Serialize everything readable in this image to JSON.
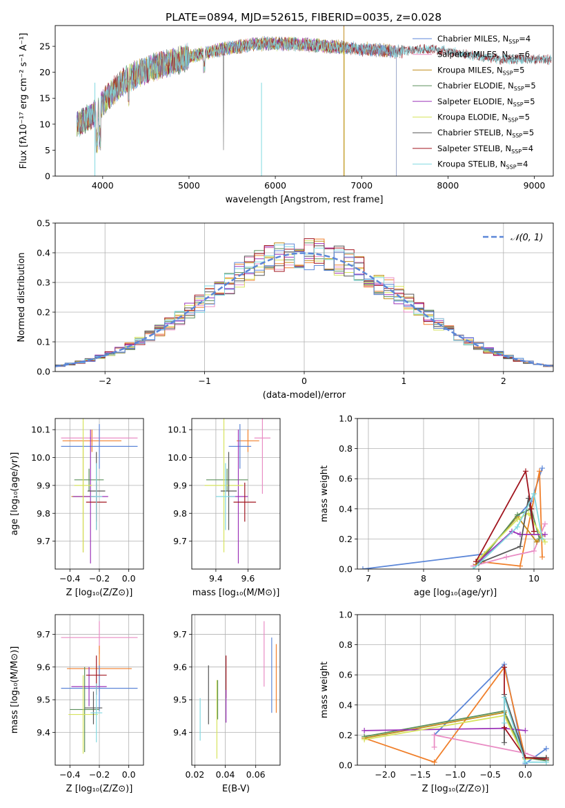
{
  "figure_title": "PLATE=0894, MJD=52615, FIBERID=0035, z=0.028",
  "colors": {
    "chabrier_miles": "#f07f2a",
    "salpeter_miles": "#e98cc4",
    "kroupa_miles": "#c08b1a",
    "chabrier_elodie": "#5a8f5a",
    "salpeter_elodie": "#9b32b8",
    "kroupa_elodie": "#d6e35c",
    "chabrier_stelib": "#555555",
    "salpeter_stelib": "#a0141e",
    "kroupa_stelib": "#80d8e0",
    "extra_blue": "#5b86d8"
  },
  "chart_data": [
    {
      "id": "spectrum",
      "type": "line",
      "xlabel": "wavelength [Angstrom, rest frame]",
      "ylabel": "Flux [fλ10⁻¹⁷ erg cm⁻² s⁻¹ A⁻¹]",
      "xlim": [
        3450,
        9220
      ],
      "ylim": [
        0,
        29
      ],
      "xticks": [
        4000,
        5000,
        6000,
        7000,
        8000,
        9000
      ],
      "yticks": [
        0,
        5,
        10,
        15,
        20,
        25
      ],
      "legend_position": "upper right",
      "continuum": {
        "x": [
          3700,
          3900,
          4100,
          4300,
          4600,
          5000,
          5400,
          5800,
          6200,
          6600,
          7000,
          7400,
          7800,
          8200,
          8600,
          9000,
          9200
        ],
        "y": [
          10,
          12,
          16,
          19,
          21,
          23,
          24.5,
          25.5,
          25.5,
          25,
          24.5,
          24,
          24.5,
          23.5,
          22.5,
          22.5,
          22.5
        ]
      },
      "series": [
        {
          "name": "Chabrier MILES, N_SSP=4",
          "x_start": 3700,
          "x_end": 7400
        },
        {
          "name": "Salpeter MILES, N_SSP=6",
          "x_start": 3700,
          "x_end": 7400
        },
        {
          "name": "Kroupa MILES, N_SSP=5",
          "x_start": 3700,
          "x_end": 7400
        },
        {
          "name": "Chabrier ELODIE, N_SSP=5",
          "x_start": 3700,
          "x_end": 6800
        },
        {
          "name": "Salpeter ELODIE, N_SSP=5",
          "x_start": 3700,
          "x_end": 6800
        },
        {
          "name": "Kroupa ELODIE, N_SSP=5",
          "x_start": 3700,
          "x_end": 6800
        },
        {
          "name": "Chabrier STELIB, N_SSP=5",
          "x_start": 3700,
          "x_end": 9200
        },
        {
          "name": "Salpeter STELIB, N_SSP=4",
          "x_start": 3700,
          "x_end": 9200
        },
        {
          "name": "Kroupa STELIB, N_SSP=4",
          "x_start": 3700,
          "x_end": 9200
        }
      ],
      "legend": [
        "Chabrier MILES, N",
        "Salpeter MILES, N",
        "Kroupa MILES, N",
        "Chabrier ELODIE, N",
        "Salpeter ELODIE, N",
        "Kroupa ELODIE, N",
        "Chabrier STELIB, N",
        "Salpeter STELIB, N",
        "Kroupa STELIB, N"
      ],
      "legend_sub": "SSP",
      "legend_counts": [
        "=4",
        "=6",
        "=5",
        "=5",
        "=5",
        "=5",
        "=5",
        "=4",
        "=4"
      ],
      "legend_colors": [
        "#5b86d8",
        "#e98cc4",
        "#c08b1a",
        "#5a8f5a",
        "#9b32b8",
        "#d6e35c",
        "#555555",
        "#a0141e",
        "#80d8e0"
      ]
    },
    {
      "id": "residuals",
      "type": "histogram",
      "xlabel": "(data-model)/error",
      "ylabel": "Normed distribution",
      "xlim": [
        -2.5,
        2.5
      ],
      "ylim": [
        0,
        0.5
      ],
      "xticks": [
        -2,
        -1,
        0,
        1,
        2
      ],
      "xticklabels": [
        "−2",
        "−1",
        "0",
        "1",
        "2"
      ],
      "yticks": [
        0.0,
        0.1,
        0.2,
        0.3,
        0.4,
        0.5
      ],
      "yticklabels": [
        "0.0",
        "0.1",
        "0.2",
        "0.3",
        "0.4",
        "0.5"
      ],
      "bin_width": 0.1,
      "gaussian_label": "𝒩(0, 1)",
      "gaussian_color": "#5b86d8",
      "legend_position": "upper right",
      "n_histograms": 9
    },
    {
      "id": "age_vs_Z",
      "type": "errorbar",
      "xlabel": "Z [log₁₀(Z/Z⊙)]",
      "ylabel": "age  [log₁₀(age/yr)]",
      "xlim": [
        -0.5,
        0.1
      ],
      "ylim": [
        9.6,
        10.14
      ],
      "xticks": [
        -0.4,
        -0.2,
        0.0
      ],
      "xticklabels": [
        "−0.4",
        "−0.2",
        "0.0"
      ],
      "yticks": [
        9.7,
        9.8,
        9.9,
        10.0,
        10.1
      ],
      "yticklabels": [
        "9.7",
        "9.8",
        "9.9",
        "10.0",
        "10.1"
      ],
      "points": [
        {
          "x": -0.25,
          "y": 10.06,
          "xerr": 0.2,
          "yerr": 0.04,
          "color": "#f07f2a"
        },
        {
          "x": -0.2,
          "y": 10.07,
          "xerr": 0.26,
          "yerr": 0.03,
          "color": "#e98cc4"
        },
        {
          "x": -0.2,
          "y": 10.04,
          "xerr": 0.26,
          "yerr": 0.08,
          "color": "#5b86d8"
        },
        {
          "x": -0.31,
          "y": 9.86,
          "xerr": 0.08,
          "yerr": 0.2,
          "color": "#c08b1a"
        },
        {
          "x": -0.27,
          "y": 9.92,
          "xerr": 0.1,
          "yerr": 0.04,
          "color": "#5a8f5a"
        },
        {
          "x": -0.26,
          "y": 9.86,
          "xerr": 0.12,
          "yerr": 0.24,
          "color": "#9b32b8"
        },
        {
          "x": -0.31,
          "y": 9.9,
          "xerr": 0.06,
          "yerr": 0.24,
          "color": "#d6e35c"
        },
        {
          "x": -0.22,
          "y": 9.88,
          "xerr": 0.06,
          "yerr": 0.14,
          "color": "#555555"
        },
        {
          "x": -0.22,
          "y": 9.84,
          "xerr": 0.07,
          "yerr": 0.07,
          "color": "#a0141e"
        },
        {
          "x": -0.22,
          "y": 9.86,
          "xerr": 0.04,
          "yerr": 0.12,
          "color": "#80d8e0"
        }
      ]
    },
    {
      "id": "age_vs_mass",
      "type": "errorbar",
      "xlabel": "mass [log₁₀(M/M⊙)]",
      "xlim": [
        9.25,
        9.8
      ],
      "ylim": [
        9.6,
        10.14
      ],
      "xticks": [
        9.4,
        9.6
      ],
      "xticklabels": [
        "9.4",
        "9.6"
      ],
      "yticks": [
        9.7,
        9.8,
        9.9,
        10.0,
        10.1
      ],
      "yticklabels": [
        "9.7",
        "9.8",
        "9.9",
        "10.0",
        "10.1"
      ],
      "points": [
        {
          "x": 9.6,
          "y": 10.06,
          "xerr": 0.07,
          "yerr": 0.04,
          "color": "#f07f2a"
        },
        {
          "x": 9.69,
          "y": 10.07,
          "xerr": 0.05,
          "yerr": 0.2,
          "color": "#e98cc4"
        },
        {
          "x": 9.55,
          "y": 10.04,
          "xerr": 0.07,
          "yerr": 0.08,
          "color": "#5b86d8"
        },
        {
          "x": 9.47,
          "y": 9.92,
          "xerr": 0.13,
          "yerr": 0.04,
          "color": "#5a8f5a"
        },
        {
          "x": 9.54,
          "y": 9.86,
          "xerr": 0.06,
          "yerr": 0.24,
          "color": "#9b32b8"
        },
        {
          "x": 9.45,
          "y": 9.9,
          "xerr": 0.12,
          "yerr": 0.24,
          "color": "#d6e35c"
        },
        {
          "x": 9.48,
          "y": 9.88,
          "xerr": 0.05,
          "yerr": 0.14,
          "color": "#555555"
        },
        {
          "x": 9.58,
          "y": 9.84,
          "xerr": 0.07,
          "yerr": 0.07,
          "color": "#a0141e"
        },
        {
          "x": 9.46,
          "y": 9.86,
          "xerr": 0.06,
          "yerr": 0.12,
          "color": "#80d8e0"
        }
      ]
    },
    {
      "id": "massweight_vs_age",
      "type": "line",
      "xlabel": "age  [log₁₀(age/yr)]",
      "ylabel": "mass weight",
      "xlim": [
        6.8,
        10.35
      ],
      "ylim": [
        0,
        1
      ],
      "xticks": [
        7,
        8,
        9,
        10
      ],
      "yticks": [
        0.0,
        0.2,
        0.4,
        0.6,
        0.8,
        1.0
      ],
      "yticklabels": [
        "0.0",
        "0.2",
        "0.4",
        "0.6",
        "0.8",
        "1.0"
      ],
      "series": [
        {
          "color": "#5b86d8",
          "x": [
            6.9,
            9.1,
            9.95,
            10.15
          ],
          "y": [
            0.0,
            0.1,
            0.45,
            0.67
          ]
        },
        {
          "color": "#f07f2a",
          "x": [
            9.0,
            9.75,
            10.1,
            10.15
          ],
          "y": [
            0.05,
            0.02,
            0.65,
            0.08
          ]
        },
        {
          "color": "#e98cc4",
          "x": [
            8.9,
            9.5,
            10.0,
            10.2
          ],
          "y": [
            0.02,
            0.08,
            0.12,
            0.3
          ]
        },
        {
          "color": "#c08b1a",
          "x": [
            8.95,
            9.7,
            10.05,
            10.15
          ],
          "y": [
            0.03,
            0.35,
            0.18,
            0.22
          ]
        },
        {
          "color": "#5a8f5a",
          "x": [
            9.0,
            9.7,
            9.95,
            10.1
          ],
          "y": [
            0.04,
            0.36,
            0.4,
            0.2
          ]
        },
        {
          "color": "#9b32b8",
          "x": [
            9.0,
            9.6,
            9.75,
            10.2
          ],
          "y": [
            0.05,
            0.25,
            0.23,
            0.23
          ]
        },
        {
          "color": "#d6e35c",
          "x": [
            8.95,
            9.7,
            9.9,
            10.2
          ],
          "y": [
            0.05,
            0.33,
            0.37,
            0.18
          ]
        },
        {
          "color": "#555555",
          "x": [
            9.0,
            9.75,
            9.9,
            10.0
          ],
          "y": [
            0.04,
            0.15,
            0.47,
            0.25
          ]
        },
        {
          "color": "#a0141e",
          "x": [
            8.95,
            9.85,
            9.95,
            10.0
          ],
          "y": [
            0.05,
            0.65,
            0.4,
            0.25
          ]
        },
        {
          "color": "#80d8e0",
          "x": [
            8.9,
            9.7,
            10.0,
            10.15
          ],
          "y": [
            0.0,
            0.28,
            0.5,
            0.2
          ]
        }
      ]
    },
    {
      "id": "mass_vs_Z",
      "type": "errorbar",
      "xlabel": "Z [log₁₀(Z/Z⊙)]",
      "ylabel": "mass [log₁₀(M/M⊙)]",
      "xlim": [
        -0.5,
        0.1
      ],
      "ylim": [
        9.3,
        9.76
      ],
      "xticks": [
        -0.4,
        -0.2,
        0.0
      ],
      "xticklabels": [
        "−0.4",
        "−0.2",
        "0.0"
      ],
      "yticks": [
        9.4,
        9.5,
        9.6,
        9.7
      ],
      "yticklabels": [
        "9.4",
        "9.5",
        "9.6",
        "9.7"
      ],
      "points": [
        {
          "x": -0.2,
          "y": 9.69,
          "xerr": 0.26,
          "yerr": 0.05,
          "color": "#e98cc4"
        },
        {
          "x": -0.2,
          "y": 9.595,
          "xerr": 0.22,
          "yerr": 0.07,
          "color": "#f07f2a"
        },
        {
          "x": -0.2,
          "y": 9.535,
          "xerr": 0.26,
          "yerr": 0.07,
          "color": "#5b86d8"
        },
        {
          "x": -0.3,
          "y": 9.47,
          "xerr": 0.1,
          "yerr": 0.13,
          "color": "#5a8f5a"
        },
        {
          "x": -0.27,
          "y": 9.54,
          "xerr": 0.12,
          "yerr": 0.06,
          "color": "#9b32b8"
        },
        {
          "x": -0.31,
          "y": 9.455,
          "xerr": 0.1,
          "yerr": 0.12,
          "color": "#d6e35c"
        },
        {
          "x": -0.24,
          "y": 9.475,
          "xerr": 0.06,
          "yerr": 0.05,
          "color": "#555555"
        },
        {
          "x": -0.22,
          "y": 9.575,
          "xerr": 0.07,
          "yerr": 0.06,
          "color": "#a0141e"
        },
        {
          "x": -0.22,
          "y": 9.46,
          "xerr": 0.04,
          "yerr": 0.09,
          "color": "#80d8e0"
        }
      ]
    },
    {
      "id": "mass_vs_EBV",
      "type": "errorbar",
      "xlabel": "E(B-V)",
      "xlim": [
        0.018,
        0.076
      ],
      "ylim": [
        9.3,
        9.76
      ],
      "xticks": [
        0.02,
        0.04,
        0.06
      ],
      "xticklabels": [
        "0.02",
        "0.04",
        "0.06"
      ],
      "yticks": [
        9.4,
        9.5,
        9.6,
        9.7
      ],
      "yticklabels": [
        "9.4",
        "9.5",
        "9.6",
        "9.7"
      ],
      "points": [
        {
          "x": 0.0235,
          "y": 9.44,
          "yerr": 0.065,
          "color": "#80d8e0"
        },
        {
          "x": 0.029,
          "y": 9.515,
          "yerr": 0.09,
          "color": "#555555"
        },
        {
          "x": 0.0345,
          "y": 9.44,
          "yerr": 0.12,
          "color": "#d6e35c"
        },
        {
          "x": 0.035,
          "y": 9.5,
          "yerr": 0.06,
          "color": "#5a8f5a"
        },
        {
          "x": 0.0405,
          "y": 9.57,
          "yerr": 0.065,
          "color": "#a0141e"
        },
        {
          "x": 0.0405,
          "y": 9.48,
          "yerr": 0.05,
          "color": "#9b32b8"
        },
        {
          "x": 0.0655,
          "y": 9.64,
          "yerr": 0.1,
          "color": "#e98cc4"
        },
        {
          "x": 0.0705,
          "y": 9.575,
          "yerr": 0.115,
          "color": "#5b86d8"
        },
        {
          "x": 0.0735,
          "y": 9.565,
          "yerr": 0.105,
          "color": "#f07f2a"
        }
      ]
    },
    {
      "id": "massweight_vs_Z",
      "type": "line",
      "xlabel": "Z [log₁₀(Z/Z⊙)]",
      "ylabel": "mass weight",
      "xlim": [
        -2.4,
        0.4
      ],
      "ylim": [
        0,
        1
      ],
      "xticks": [
        -2.0,
        -1.5,
        -1.0,
        -0.5,
        0.0
      ],
      "xticklabels": [
        "−2.0",
        "−1.5",
        "−1.0",
        "−0.5",
        "0.0"
      ],
      "yticks": [
        0.0,
        0.2,
        0.4,
        0.6,
        0.8,
        1.0
      ],
      "yticklabels": [
        "0.0",
        "0.2",
        "0.4",
        "0.6",
        "0.8",
        "1.0"
      ],
      "series": [
        {
          "color": "#5b86d8",
          "x": [
            -1.3,
            -0.3,
            0.0,
            0.3
          ],
          "y": [
            0.2,
            0.67,
            0.01,
            0.11
          ]
        },
        {
          "color": "#f07f2a",
          "x": [
            -2.3,
            -1.3,
            -0.3,
            0.0,
            0.3
          ],
          "y": [
            0.18,
            0.02,
            0.65,
            0.05,
            0.04
          ]
        },
        {
          "color": "#e98cc4",
          "x": [
            -1.3,
            -1.3,
            0.0,
            0.3
          ],
          "y": [
            0.12,
            0.2,
            0.08,
            0.03
          ]
        },
        {
          "color": "#c08b1a",
          "x": [
            -2.3,
            -0.3,
            0.0,
            0.3
          ],
          "y": [
            0.18,
            0.35,
            0.05,
            0.03
          ]
        },
        {
          "color": "#5a8f5a",
          "x": [
            -2.3,
            -0.3,
            0.0,
            0.3
          ],
          "y": [
            0.19,
            0.36,
            0.05,
            0.03
          ]
        },
        {
          "color": "#9b32b8",
          "x": [
            -2.3,
            -0.3,
            0.0
          ],
          "y": [
            0.23,
            0.245,
            0.23
          ]
        },
        {
          "color": "#d6e35c",
          "x": [
            -2.3,
            -0.3,
            0.0,
            0.3
          ],
          "y": [
            0.17,
            0.33,
            0.04,
            0.05
          ]
        },
        {
          "color": "#555555",
          "x": [
            -0.3,
            -0.3,
            0.0,
            0.3
          ],
          "y": [
            0.15,
            0.47,
            0.05,
            0.05
          ]
        },
        {
          "color": "#a0141e",
          "x": [
            -0.3,
            -0.3,
            0.0,
            0.3
          ],
          "y": [
            0.65,
            0.25,
            0.05,
            0.04
          ]
        },
        {
          "color": "#80d8e0",
          "x": [
            -0.3,
            -0.3,
            0.0,
            0.3
          ],
          "y": [
            0.28,
            0.45,
            0.02,
            0.02
          ]
        }
      ]
    }
  ]
}
